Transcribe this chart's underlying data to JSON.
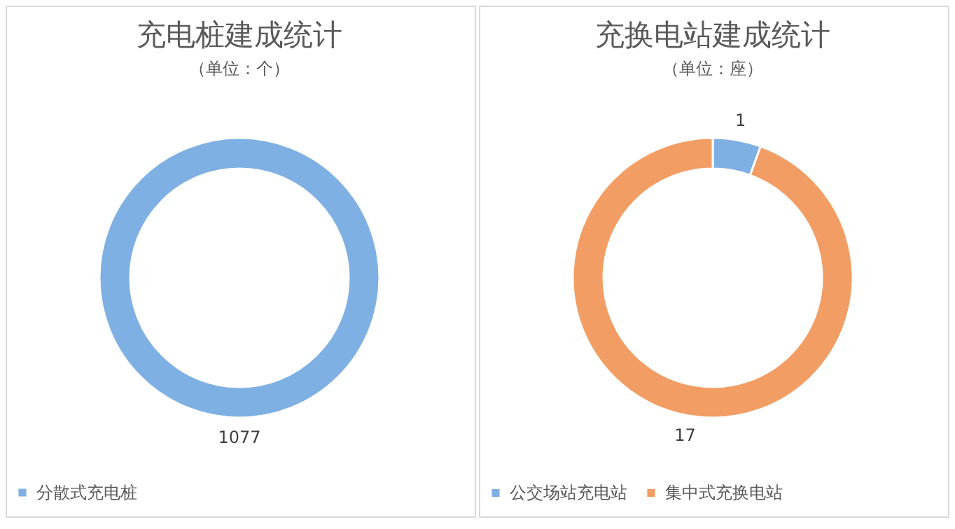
{
  "chart_data": [
    {
      "type": "donut",
      "title": "充电桩建成统计",
      "subtitle": "（单位：个）",
      "categories": [
        "分散式充电桩"
      ],
      "values": [
        1077
      ],
      "colors": [
        "#7eb0e3"
      ],
      "data_labels": true,
      "legend": "bottom"
    },
    {
      "type": "donut",
      "title": "充换电站建成统计",
      "subtitle": "（单位：座）",
      "categories": [
        "公交场站充电站",
        "集中式充换电站"
      ],
      "values": [
        1,
        17
      ],
      "colors": [
        "#7eb0e3",
        "#f29d63"
      ],
      "data_labels": true,
      "legend": "bottom"
    }
  ]
}
